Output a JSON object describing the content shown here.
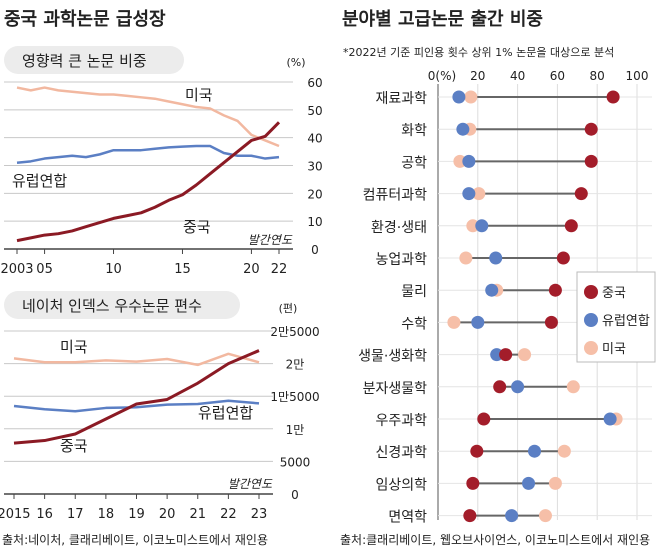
{
  "titles": {
    "left": "중국 과학논문 급성장",
    "right": "분야별 고급논문 출간 비중"
  },
  "colors": {
    "china": "#8b1a24",
    "eu": "#5b7fc4",
    "us": "#f2b8a0",
    "connector": "#666666",
    "panel": "#ececec"
  },
  "chart_data": [
    {
      "type": "line",
      "title": "영향력 큰 논문 비중",
      "unit": "(%)",
      "xlabel": "발간연도",
      "x": [
        2003,
        2004,
        2005,
        2006,
        2007,
        2008,
        2009,
        2010,
        2011,
        2012,
        2013,
        2014,
        2015,
        2016,
        2017,
        2018,
        2019,
        2020,
        2021,
        2022
      ],
      "xtick_values": [
        2003,
        2005,
        2010,
        2015,
        2020,
        2022
      ],
      "xtick_labels": [
        "2003",
        "05",
        "10",
        "15",
        "20",
        "22"
      ],
      "ylim": [
        0,
        60
      ],
      "yticks": [
        0,
        10,
        20,
        30,
        40,
        50,
        60
      ],
      "ytick_labels": [
        "0",
        "10",
        "20",
        "30",
        "40",
        "50",
        "60"
      ],
      "grid": true,
      "series": [
        {
          "name": "중국",
          "color": "#8b1a24",
          "values": [
            3,
            4,
            5,
            5.5,
            6.5,
            8,
            9.5,
            11,
            12,
            13,
            15,
            17.5,
            19.5,
            23,
            27,
            31,
            35,
            39,
            40.5,
            45.5
          ]
        },
        {
          "name": "미국",
          "color": "#f2b8a0",
          "values": [
            58,
            57,
            58,
            57,
            56.5,
            56,
            55.5,
            55.5,
            55,
            54.5,
            54,
            53,
            52,
            51,
            50.5,
            48,
            46,
            41,
            39,
            37
          ]
        },
        {
          "name": "유럽연합",
          "color": "#5b7fc4",
          "values": [
            31,
            31.5,
            32.5,
            33,
            33.5,
            33,
            34,
            35.5,
            35.5,
            35.5,
            36,
            36.5,
            36.8,
            37,
            37,
            34.5,
            33.5,
            33.5,
            32.5,
            33
          ]
        }
      ]
    },
    {
      "type": "line",
      "title": "네이처 인덱스 우수논문 편수",
      "unit": "(편)",
      "xlabel": "발간연도",
      "x": [
        2015,
        2016,
        2017,
        2018,
        2019,
        2020,
        2021,
        2022,
        2023
      ],
      "xtick_labels": [
        "2015",
        "16",
        "17",
        "18",
        "19",
        "20",
        "21",
        "22",
        "23"
      ],
      "ylim": [
        0,
        25000
      ],
      "yticks": [
        0,
        5000,
        10000,
        15000,
        20000,
        25000
      ],
      "ytick_labels": [
        "0",
        "5000",
        "1만",
        "1만5000",
        "2만",
        "2만5000"
      ],
      "grid": true,
      "series": [
        {
          "name": "중국",
          "color": "#8b1a24",
          "values": [
            7800,
            8200,
            9200,
            11500,
            13800,
            14500,
            17000,
            20000,
            22000
          ]
        },
        {
          "name": "미국",
          "color": "#f2b8a0",
          "values": [
            20800,
            20200,
            20200,
            20500,
            20300,
            20700,
            19800,
            21500,
            20200
          ]
        },
        {
          "name": "유럽연합",
          "color": "#5b7fc4",
          "values": [
            13500,
            13000,
            12700,
            13200,
            13300,
            13700,
            13800,
            14300,
            13900
          ]
        }
      ]
    },
    {
      "type": "dot-plot",
      "title": "분야별 고급논문 출간 비중",
      "note": "*2022년 기준 피인용 횟수 상위 1% 논문을 대상으로 분석",
      "xlim": [
        0,
        100
      ],
      "xticks": [
        0,
        20,
        40,
        60,
        80,
        100
      ],
      "xtick_labels": [
        "0(%)",
        "20",
        "40",
        "60",
        "80",
        "100"
      ],
      "legend": "right",
      "categories": [
        "재료과학",
        "화학",
        "공학",
        "컴퓨터과학",
        "환경·생태",
        "농업과학",
        "물리",
        "수학",
        "생물·생화학",
        "분자생물학",
        "우주과학",
        "신경과학",
        "임상의학",
        "면역학"
      ],
      "series": [
        {
          "name": "중국",
          "color": "#a31d2a",
          "values": [
            88,
            77,
            77,
            72,
            67,
            63,
            59,
            57,
            34,
            31,
            23,
            19.5,
            17.5,
            16
          ]
        },
        {
          "name": "유럽연합",
          "color": "#5b7fc4",
          "values": [
            10.5,
            12.5,
            15.5,
            15.5,
            22,
            29,
            27,
            20,
            29.5,
            40,
            86.5,
            48.5,
            45.5,
            37
          ]
        },
        {
          "name": "미국",
          "color": "#f6bfa8",
          "values": [
            16.5,
            16,
            11,
            20.5,
            17.5,
            14,
            29.5,
            8,
            43.5,
            68,
            89.5,
            63.5,
            59,
            54
          ]
        }
      ]
    }
  ],
  "sources": {
    "left": "출처:네이처, 클래리베이트, 이코노미스트에서 재인용",
    "right": "출처:클래리베이트, 웹오브사이언스, 이코노미스트에서 재인용"
  }
}
